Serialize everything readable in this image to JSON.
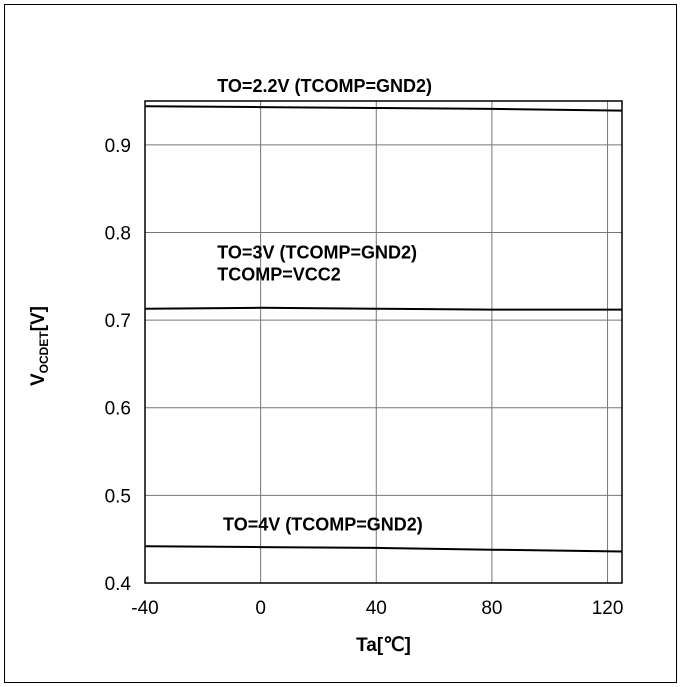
{
  "chart_data": {
    "type": "line",
    "title": "",
    "xlabel": "Ta[℃]",
    "ylabel": {
      "main": "V",
      "subscript": "OCDET",
      "unit": "[V]"
    },
    "xlim": [
      -40,
      125
    ],
    "ylim": [
      0.4,
      0.95
    ],
    "xticks": [
      -40,
      0,
      40,
      80,
      120
    ],
    "xtick_labels": [
      "-40",
      "0",
      "40",
      "80",
      "120"
    ],
    "yticks": [
      0.4,
      0.5,
      0.6,
      0.7,
      0.8,
      0.9
    ],
    "ytick_labels": [
      "0.4",
      "0.5",
      "0.6",
      "0.7",
      "0.8",
      "0.9"
    ],
    "grid": true,
    "series": [
      {
        "x": [
          -40,
          0,
          40,
          80,
          125
        ],
        "y": [
          0.944,
          0.943,
          0.942,
          0.941,
          0.939
        ]
      },
      {
        "x": [
          -40,
          0,
          40,
          80,
          125
        ],
        "y": [
          0.713,
          0.714,
          0.713,
          0.712,
          0.712
        ]
      },
      {
        "x": [
          -40,
          0,
          40,
          80,
          125
        ],
        "y": [
          0.442,
          0.441,
          0.44,
          0.438,
          0.436
        ]
      }
    ],
    "annotations": [
      {
        "text": "TO=2.2V (TCOMP=GND2)",
        "x": -15,
        "y": 0.96
      },
      {
        "text": "TO=3V (TCOMP=GND2)",
        "x": -15,
        "y": 0.77
      },
      {
        "text": "TCOMP=VCC2",
        "x": -15,
        "y": 0.745
      },
      {
        "text": "TO=4V (TCOMP=GND2)",
        "x": -13,
        "y": 0.46
      }
    ]
  }
}
